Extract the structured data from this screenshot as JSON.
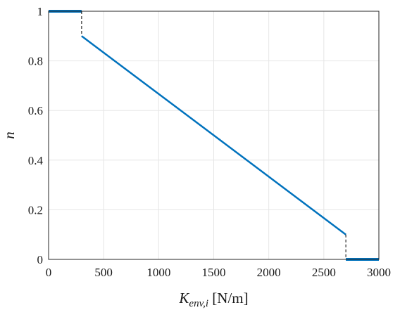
{
  "chart_data": {
    "type": "line",
    "xlabel": {
      "main": "K",
      "sub": "env,i",
      "unit": " [N/m]"
    },
    "ylabel": "n",
    "xlim": [
      0,
      3000
    ],
    "ylim": [
      0,
      1
    ],
    "xticks": [
      0,
      500,
      1000,
      1500,
      2000,
      2500,
      3000
    ],
    "yticks": [
      0,
      0.2,
      0.4,
      0.6,
      0.8,
      1
    ],
    "xtick_labels": [
      "0",
      "500",
      "1000",
      "1500",
      "2000",
      "2500",
      "3000"
    ],
    "ytick_labels": [
      "0",
      "0.2",
      "0.4",
      "0.6",
      "0.8",
      "1"
    ],
    "grid": true,
    "line_color": "#0072BD",
    "segments": [
      {
        "style": "solid",
        "x": [
          0,
          300
        ],
        "y": [
          1,
          1
        ],
        "weight": "thick"
      },
      {
        "style": "dashed",
        "x": [
          300,
          300
        ],
        "y": [
          1,
          0.9
        ]
      },
      {
        "style": "solid",
        "x": [
          300,
          2700
        ],
        "y": [
          0.9,
          0.1
        ],
        "weight": "normal"
      },
      {
        "style": "dashed",
        "x": [
          2700,
          2700
        ],
        "y": [
          0.1,
          0
        ]
      },
      {
        "style": "solid",
        "x": [
          2700,
          3000
        ],
        "y": [
          0,
          0
        ],
        "weight": "thick"
      }
    ]
  }
}
